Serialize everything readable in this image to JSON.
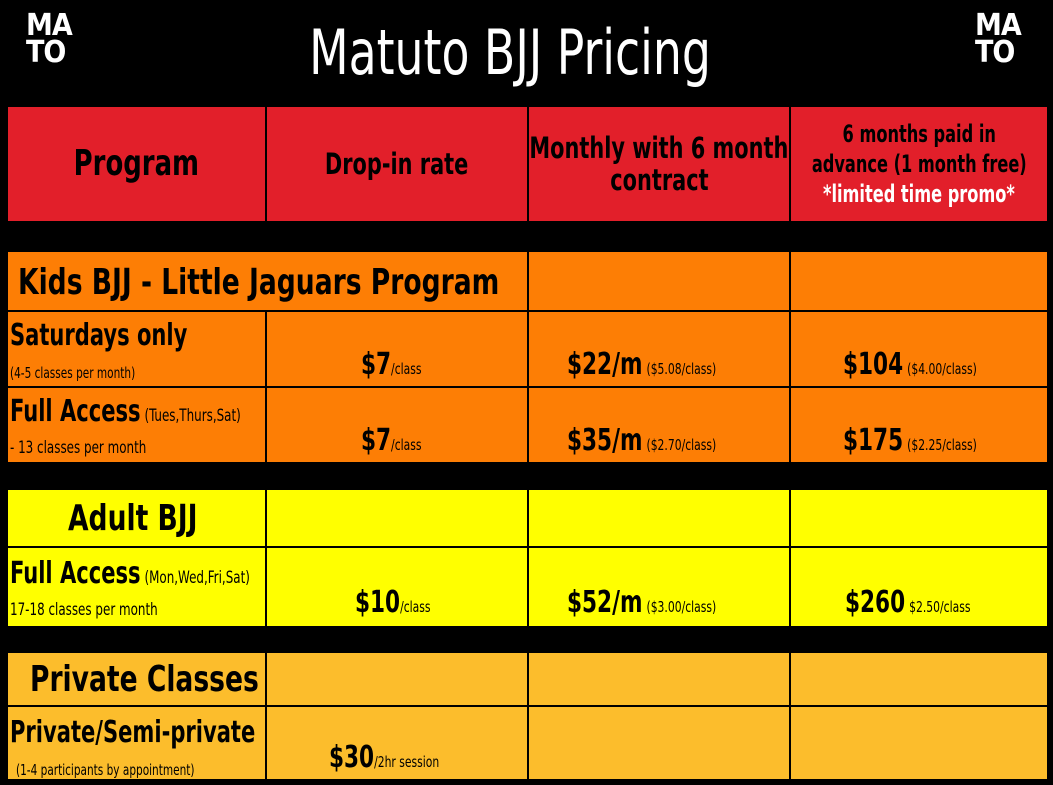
{
  "logo": {
    "line1": "MA",
    "line2": "TO"
  },
  "title": "Matuto BJJ Pricing",
  "header": {
    "program": "Program",
    "dropin": "Drop-in rate",
    "monthly_l1": "Monthly with 6 month",
    "monthly_l2": "contract",
    "advance_l1": "6 months paid in",
    "advance_l2": "advance (1 month free)",
    "advance_promo": "*limited time promo*"
  },
  "kids": {
    "section": "Kids BJJ - Little Jaguars Program",
    "saturdays": {
      "label": "Saturdays only",
      "sub": "(4-5 classes per month)",
      "dropin_price": "$7",
      "dropin_unit": "/class",
      "monthly_price": "$22/m",
      "monthly_note": "($5.08/class)",
      "advance_price": "$104",
      "advance_note": "($4.00/class)"
    },
    "full": {
      "label": "Full Access",
      "label_days": "(Tues,Thurs,Sat)",
      "sub": "- 13 classes per month",
      "dropin_price": "$7",
      "dropin_unit": "/class",
      "monthly_price": "$35/m",
      "monthly_note": "($2.70/class)",
      "advance_price": "$175",
      "advance_note": "($2.25/class)"
    }
  },
  "adult": {
    "section": "Adult BJJ",
    "full": {
      "label": "Full Access",
      "label_days": "(Mon,Wed,Fri,Sat)",
      "sub": "17-18 classes per month",
      "dropin_price": "$10",
      "dropin_unit": "/class",
      "monthly_price": "$52/m",
      "monthly_note": "($3.00/class)",
      "advance_price": "$260",
      "advance_note": "$2.50/class"
    }
  },
  "private": {
    "section": "Private Classes",
    "row": {
      "label": "Private/Semi-private",
      "sub": "(1-4 participants by appointment)",
      "dropin_price": "$30",
      "dropin_unit": "/2hr session"
    }
  },
  "colors": {
    "header": "#e21f2a",
    "kids": "#fd7e05",
    "adult": "#ffff00",
    "private": "#fcbd2c"
  }
}
